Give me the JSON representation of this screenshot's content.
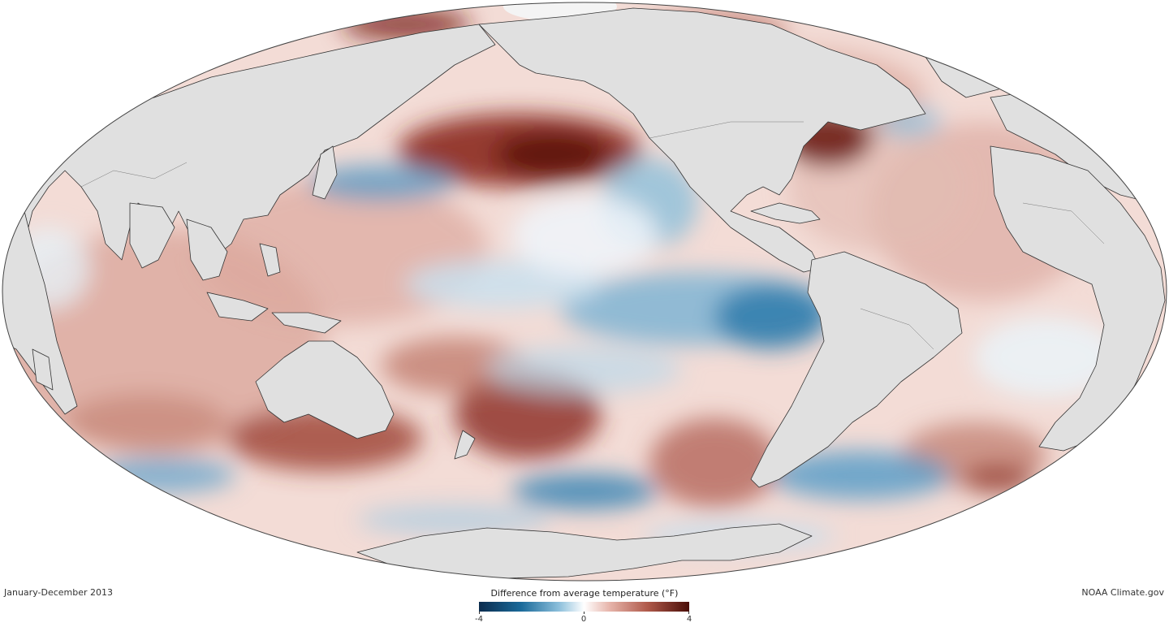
{
  "map": {
    "projection": "Mollweide",
    "variable": "sea surface temperature anomaly",
    "land_color": "#e0e0e0",
    "coastline_color": "#333333",
    "warm_color": "#8b2a20",
    "cool_color": "#1a6a9a",
    "neutral_color": "#ffffff"
  },
  "footer": {
    "period": "January-December 2013",
    "credit": "NOAA Climate.gov"
  },
  "legend": {
    "title": "Difference from average temperature (°F)",
    "min_label": "-4",
    "mid_label": "0",
    "max_label": "4",
    "min_value": -4,
    "max_value": 4,
    "colors": [
      "#0b2c4e",
      "#1a6a9a",
      "#8cbfdb",
      "#ffffff",
      "#e7b5ab",
      "#b05a4b",
      "#4a0d07"
    ]
  }
}
